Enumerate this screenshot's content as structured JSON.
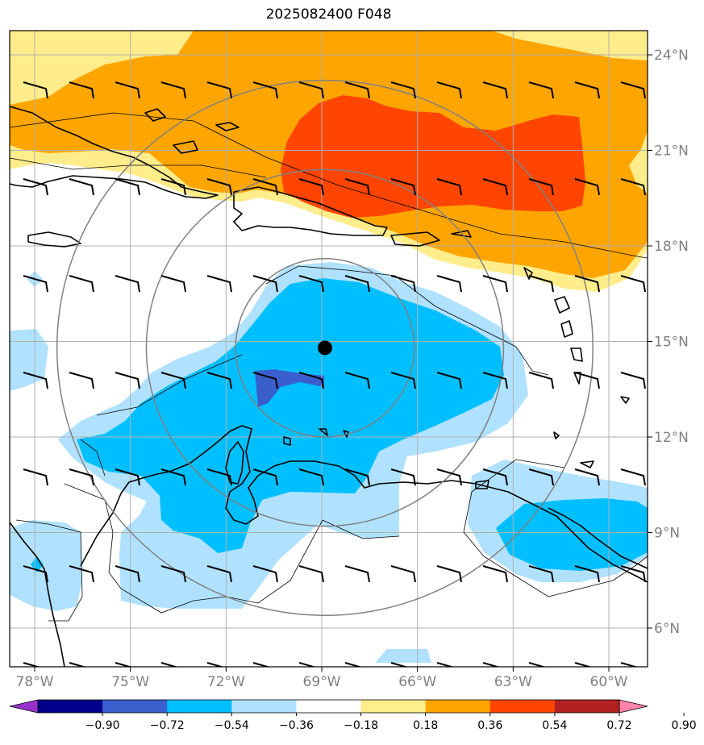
{
  "title": "2025082400 F048",
  "map": {
    "lon_range": [
      -79,
      -59
    ],
    "lat_range": [
      5,
      25
    ],
    "lon_ticks": [
      {
        "value": -78,
        "label": "78°W"
      },
      {
        "value": -75,
        "label": "75°W"
      },
      {
        "value": -72,
        "label": "72°W"
      },
      {
        "value": -69,
        "label": "69°W"
      },
      {
        "value": -66,
        "label": "66°W"
      },
      {
        "value": -63,
        "label": "63°W"
      },
      {
        "value": -60,
        "label": "60°W"
      }
    ],
    "lat_ticks": [
      {
        "value": 6,
        "label": "6°N"
      },
      {
        "value": 9,
        "label": "9°N"
      },
      {
        "value": 12,
        "label": "12°N"
      },
      {
        "value": 15,
        "label": "15°N"
      },
      {
        "value": 18,
        "label": "18°N"
      },
      {
        "value": 21,
        "label": "21°N"
      },
      {
        "value": 24,
        "label": "24°N"
      }
    ],
    "center": {
      "lon": -68.9,
      "lat": 14.8
    },
    "range_rings_deg": [
      2.8,
      5.6,
      8.4
    ],
    "grid": true,
    "colors": {
      "grid": "#b0b0b0",
      "rings": "#808080",
      "coast": "#000000"
    }
  },
  "colorbar": {
    "ticks": [
      "−0.90",
      "−0.72",
      "−0.54",
      "−0.36",
      "−0.18",
      "0.18",
      "0.36",
      "0.54",
      "0.72",
      "0.90"
    ],
    "colors": [
      "#9932cc",
      "#00008b",
      "#3a5fcd",
      "#00bfff",
      "#b0e2ff",
      "#ffffff",
      "#ffec8b",
      "#ffa500",
      "#ff4500",
      "#b22222",
      "#ff82ab"
    ],
    "extend": "both"
  }
}
